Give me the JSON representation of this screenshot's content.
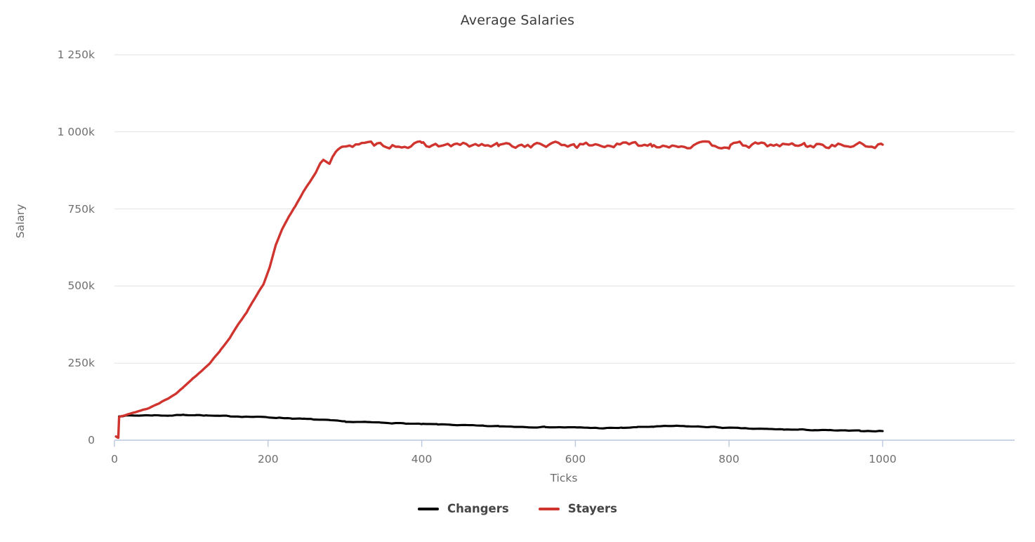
{
  "styles": {
    "background": "#ffffff",
    "title_color": "#3b3b3b",
    "tick_label_color": "#6f6f6f",
    "axis_title_color": "#6a6a6a",
    "gridline_color": "#e2e2e2",
    "axis_line_color": "#bcc7de",
    "legend_text_color": "#454545",
    "series_changers_color": "#000000",
    "series_stayers_color": "#d0342e"
  },
  "chart_data": {
    "type": "line",
    "title": "Average Salaries",
    "xlabel": "Ticks",
    "ylabel": "Salary",
    "xlim": [
      0,
      1170
    ],
    "ylim_k": [
      0,
      1250
    ],
    "values_unit": "thousands of salary units (k)",
    "grid": "horizontal gridlines only",
    "legend_position": "bottom-center",
    "x_ticks": [
      {
        "value": 0,
        "label": "0"
      },
      {
        "value": 200,
        "label": "200"
      },
      {
        "value": 400,
        "label": "400"
      },
      {
        "value": 600,
        "label": "600"
      },
      {
        "value": 800,
        "label": "800"
      },
      {
        "value": 1000,
        "label": "1000"
      }
    ],
    "y_ticks": [
      {
        "value_k": 0,
        "label": "0"
      },
      {
        "value_k": 250,
        "label": "250k"
      },
      {
        "value_k": 500,
        "label": "500k"
      },
      {
        "value_k": 750,
        "label": "750k"
      },
      {
        "value_k": 1000,
        "label": "1 000k"
      },
      {
        "value_k": 1250,
        "label": "1 250k"
      }
    ],
    "series": [
      {
        "name": "Changers",
        "color": "#000000",
        "stroke_width": 3.1,
        "seed": 7,
        "step": 5,
        "noise": [
          {
            "from": 0,
            "to": 1000,
            "amp": 1.4
          }
        ],
        "points_k": [
          [
            6,
            78
          ],
          [
            15,
            80
          ],
          [
            30,
            80
          ],
          [
            50,
            81
          ],
          [
            70,
            80
          ],
          [
            90,
            82
          ],
          [
            105,
            82
          ],
          [
            120,
            80
          ],
          [
            135,
            78
          ],
          [
            150,
            78
          ],
          [
            165,
            77
          ],
          [
            180,
            76
          ],
          [
            200,
            74
          ],
          [
            215,
            73
          ],
          [
            230,
            71
          ],
          [
            245,
            69
          ],
          [
            260,
            67
          ],
          [
            280,
            64
          ],
          [
            300,
            60
          ],
          [
            315,
            59
          ],
          [
            330,
            58
          ],
          [
            345,
            57
          ],
          [
            360,
            56
          ],
          [
            380,
            54
          ],
          [
            400,
            52
          ],
          [
            420,
            51
          ],
          [
            440,
            50
          ],
          [
            460,
            48
          ],
          [
            480,
            46
          ],
          [
            500,
            45
          ],
          [
            520,
            44
          ],
          [
            540,
            43
          ],
          [
            560,
            43
          ],
          [
            580,
            42
          ],
          [
            600,
            41
          ],
          [
            620,
            40
          ],
          [
            640,
            39
          ],
          [
            660,
            40
          ],
          [
            680,
            42
          ],
          [
            700,
            44
          ],
          [
            715,
            45
          ],
          [
            730,
            46
          ],
          [
            745,
            45
          ],
          [
            760,
            44
          ],
          [
            775,
            43
          ],
          [
            790,
            41
          ],
          [
            810,
            39
          ],
          [
            830,
            37
          ],
          [
            850,
            36
          ],
          [
            870,
            35
          ],
          [
            890,
            34
          ],
          [
            910,
            33
          ],
          [
            930,
            32
          ],
          [
            950,
            31
          ],
          [
            970,
            30
          ],
          [
            1000,
            30
          ]
        ]
      },
      {
        "name": "Stayers",
        "color": "#d0342e",
        "stroke_width": 3.4,
        "seed": 13,
        "step": 4,
        "noise": [
          {
            "from": 0,
            "to": 304,
            "amp": 1.2
          },
          {
            "from": 304,
            "to": 1000,
            "amp": 10
          }
        ],
        "points_k": [
          [
            2,
            12
          ],
          [
            4,
            9
          ],
          [
            5,
            9
          ],
          [
            6,
            76
          ],
          [
            8,
            79
          ],
          [
            12,
            81
          ],
          [
            16,
            83
          ],
          [
            20,
            85
          ],
          [
            27,
            91
          ],
          [
            35,
            97
          ],
          [
            45,
            104
          ],
          [
            58,
            120
          ],
          [
            70,
            136
          ],
          [
            80,
            152
          ],
          [
            89,
            170
          ],
          [
            100,
            196
          ],
          [
            112,
            222
          ],
          [
            124,
            250
          ],
          [
            137,
            289
          ],
          [
            150,
            332
          ],
          [
            162,
            378
          ],
          [
            172,
            415
          ],
          [
            180,
            450
          ],
          [
            187,
            478
          ],
          [
            194,
            505
          ],
          [
            202,
            560
          ],
          [
            210,
            632
          ],
          [
            218,
            682
          ],
          [
            227,
            724
          ],
          [
            235,
            757
          ],
          [
            245,
            802
          ],
          [
            252,
            830
          ],
          [
            258,
            852
          ],
          [
            263,
            872
          ],
          [
            268,
            898
          ],
          [
            272,
            908
          ],
          [
            276,
            903
          ],
          [
            280,
            897
          ],
          [
            284,
            920
          ],
          [
            288,
            935
          ],
          [
            292,
            945
          ],
          [
            296,
            950
          ],
          [
            300,
            953
          ],
          [
            306,
            956
          ],
          [
            350,
            958
          ],
          [
            400,
            957
          ],
          [
            450,
            956
          ],
          [
            500,
            955
          ],
          [
            550,
            957
          ],
          [
            600,
            958
          ],
          [
            650,
            957
          ],
          [
            700,
            959
          ],
          [
            750,
            956
          ],
          [
            800,
            956
          ],
          [
            850,
            957
          ],
          [
            900,
            957
          ],
          [
            950,
            956
          ],
          [
            1000,
            957
          ]
        ]
      }
    ]
  }
}
